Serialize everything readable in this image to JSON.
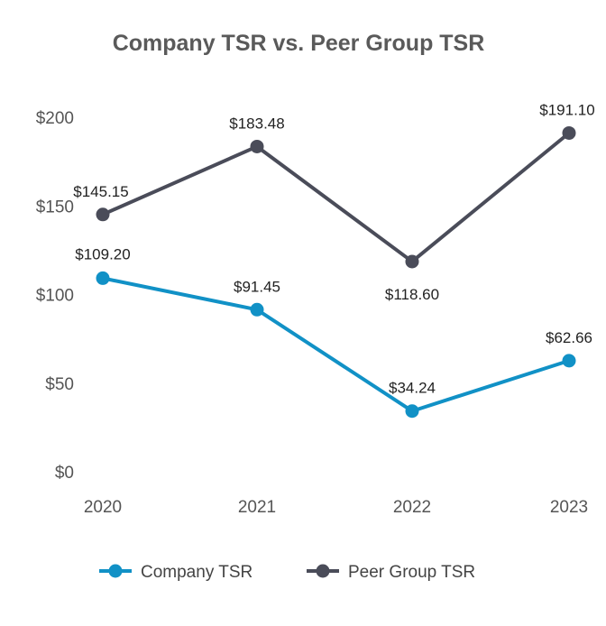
{
  "chart_data": {
    "type": "line",
    "title": "Company TSR vs. Peer Group TSR",
    "xlabel": "",
    "ylabel": "",
    "categories": [
      "2020",
      "2021",
      "2022",
      "2023"
    ],
    "ylim": [
      0,
      200
    ],
    "yticks": [
      0,
      50,
      100,
      150,
      200
    ],
    "ytick_labels": [
      "$0",
      "$50",
      "$100",
      "$150",
      "$200"
    ],
    "grid": false,
    "legend_position": "bottom",
    "series": [
      {
        "name": "Company TSR",
        "color": "#1191c6",
        "values": [
          109.2,
          91.45,
          34.24,
          62.66
        ],
        "labels": [
          "$109.20",
          "$91.45",
          "$34.24",
          "$62.66"
        ]
      },
      {
        "name": "Peer Group TSR",
        "color": "#4a4c59",
        "values": [
          145.15,
          183.48,
          118.6,
          191.1
        ],
        "labels": [
          "$145.15",
          "$183.48",
          "$118.60",
          "$191.10"
        ]
      }
    ]
  }
}
